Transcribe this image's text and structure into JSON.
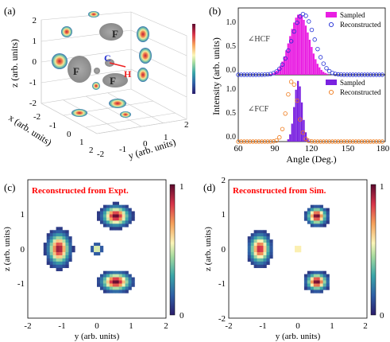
{
  "panels": {
    "a": {
      "label": "(a)",
      "axis_x": "x (arb. units)",
      "axis_y": "y (arb. units)",
      "axis_z": "z (arb. units)",
      "z_ticks": [
        "2",
        "1",
        "0",
        "-1",
        "-2"
      ],
      "x_ticks": [
        "-2",
        "-1",
        "0",
        "1",
        "2"
      ],
      "y_ticks": [
        "-2",
        "-1",
        "0",
        "1",
        "2"
      ],
      "atoms": {
        "F1": "F",
        "F2": "F",
        "F3": "F",
        "C": "C",
        "H": "H"
      }
    },
    "b": {
      "label": "(b)",
      "ylabel": "Intensity (arb. units)",
      "xlabel": "Angle (Deg.)",
      "x_ticks": [
        "60",
        "90",
        "120",
        "150",
        "180"
      ],
      "y_ticks_top": [
        "1.0",
        "0.5",
        "0.0"
      ],
      "y_ticks_bottom": [
        "1.0",
        "0.5",
        "0.0"
      ],
      "top_tag": "∠HCF",
      "bottom_tag": "∠FCF",
      "legend_sampled": "Sampled",
      "legend_reconstructed": "Reconstructed",
      "color_hcf": "#e91ee2",
      "color_fcf": "#7a22e0",
      "color_hcf_recon": "#1f2bd6",
      "color_fcf_recon": "#f07a1a"
    },
    "c": {
      "label": "(c)",
      "annotation": "Reconstructed from Expt.",
      "xlabel": "y (arb. units)",
      "ylabel": "z (arb. units)",
      "x_ticks": [
        "-2",
        "-1",
        "0",
        "1",
        "2"
      ],
      "y_ticks": [
        "1",
        "0",
        "-1"
      ],
      "cbar_ticks": [
        "1",
        "0"
      ]
    },
    "d": {
      "label": "(d)",
      "annotation": "Reconstructed from Sim.",
      "xlabel": "y (arb. units)",
      "ylabel": "z (arb. units)",
      "x_ticks": [
        "-2",
        "-1",
        "0",
        "1",
        "2"
      ],
      "y_ticks": [
        "2",
        "1",
        "0",
        "-1",
        "-2"
      ],
      "cbar_ticks": [
        "1",
        "0"
      ]
    }
  },
  "chart_data": [
    {
      "type": "bar",
      "title": "",
      "panel": "b-top",
      "xlabel": "Angle (Deg.)",
      "ylabel": "Intensity (arb. units)",
      "xlim": [
        60,
        180
      ],
      "ylim": [
        0,
        1.1
      ],
      "series": [
        {
          "name": "Sampled",
          "kind": "histogram",
          "center": 110,
          "sigma": 8,
          "peak": 1.0
        },
        {
          "name": "Reconstructed",
          "kind": "circles",
          "center": 113,
          "sigma": 9,
          "peak": 1.0
        }
      ]
    },
    {
      "type": "bar",
      "title": "",
      "panel": "b-bottom",
      "xlabel": "Angle (Deg.)",
      "ylabel": "Intensity (arb. units)",
      "xlim": [
        60,
        180
      ],
      "ylim": [
        0,
        1.1
      ],
      "series": [
        {
          "name": "Sampled",
          "kind": "histogram",
          "center": 109,
          "sigma": 3.2,
          "peak": 1.0
        },
        {
          "name": "Reconstructed",
          "kind": "circles",
          "center": 104,
          "sigma": 4.5,
          "peak": 1.0
        }
      ]
    },
    {
      "type": "heatmap",
      "title": "",
      "panel": "c",
      "xlabel": "y (arb. units)",
      "ylabel": "z (arb. units)",
      "xlim": [
        -2,
        2
      ],
      "ylim": [
        -2,
        2
      ],
      "blobs": [
        {
          "cy": 0.55,
          "cz": 0.95,
          "sy": 0.22,
          "sz": 0.16,
          "peak": 1.0
        },
        {
          "cy": -1.1,
          "cz": 0.0,
          "sy": 0.18,
          "sz": 0.26,
          "peak": 0.95
        },
        {
          "cy": 0.0,
          "cz": 0.0,
          "sy": 0.08,
          "sz": 0.08,
          "peak": 0.7
        },
        {
          "cy": 0.55,
          "cz": -0.95,
          "sy": 0.24,
          "sz": 0.15,
          "peak": 1.0
        }
      ]
    },
    {
      "type": "heatmap",
      "title": "",
      "panel": "d",
      "xlabel": "y (arb. units)",
      "ylabel": "z (arb. units)",
      "xlim": [
        -2,
        2
      ],
      "ylim": [
        -2,
        2
      ],
      "blobs": [
        {
          "cy": 0.55,
          "cz": 0.95,
          "sy": 0.16,
          "sz": 0.14,
          "peak": 1.0
        },
        {
          "cy": -1.1,
          "cz": 0.0,
          "sy": 0.17,
          "sz": 0.24,
          "peak": 0.9
        },
        {
          "cy": 0.0,
          "cz": 0.0,
          "sy": 0.06,
          "sz": 0.06,
          "peak": 1.0
        },
        {
          "cy": 0.55,
          "cz": -0.95,
          "sy": 0.17,
          "sz": 0.14,
          "peak": 1.0
        }
      ]
    }
  ]
}
